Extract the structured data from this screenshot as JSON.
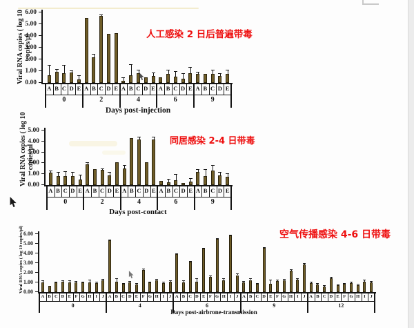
{
  "page": {
    "background": "#fdfdfd",
    "accent_red": "#ee0f0f",
    "bar_color": "#6f5d28",
    "axis_color": "#141414"
  },
  "annotations": [
    {
      "text": "人工感染 2 日后普遍带毒",
      "color": "#ee0f0f"
    },
    {
      "text": "同居感染 2-4 日带毒",
      "color": "#ee0f0f"
    },
    {
      "text": "空气传播感染 4-6 日带毒",
      "color": "#ee0f0f"
    }
  ],
  "icons": {
    "cursor_main": "mouse-pointer-cursor",
    "cursor_chart1": "small-pointer-cursor",
    "cursor_chart3": "small-pointer-cursor",
    "corner_fragment": "window-corner-fragment",
    "scrollbar": "right-scrollbar-strip"
  },
  "chart_data": [
    {
      "type": "bar",
      "title": "",
      "ylabel_line1": "Viral RNA copies ( log 10",
      "ylabel_line2": "copies/µl",
      "xlabel": "Days post-injection",
      "ylim": [
        0,
        6
      ],
      "yticks": [
        "0.00",
        "1.00",
        "2.00",
        "3.00",
        "4.00",
        "5.00",
        "6.00"
      ],
      "legend": null,
      "grid": false,
      "annotation": "人工感染 2 日后普遍带毒",
      "groups": [
        {
          "label": "0",
          "letters": [
            "A",
            "B",
            "C",
            "D",
            "E"
          ],
          "values": [
            0.65,
            0.95,
            0.8,
            0.9,
            0.3
          ],
          "errors": [
            1.55,
            1.2,
            1.55,
            1.05,
            0.65
          ]
        },
        {
          "label": "2",
          "letters": [
            "A",
            "B",
            "C",
            "D",
            "E"
          ],
          "values": [
            5.55,
            2.15,
            5.7,
            4.2,
            4.25
          ],
          "errors": [
            5.55,
            2.5,
            5.85,
            4.2,
            4.25
          ]
        },
        {
          "label": "4",
          "letters": [
            "A",
            "B",
            "C",
            "D",
            "E"
          ],
          "values": [
            0.2,
            0.65,
            0.8,
            0.45,
            0.6
          ],
          "errors": [
            0.5,
            1.6,
            1.1,
            0.45,
            0.9
          ]
        },
        {
          "label": "6",
          "letters": [
            "A",
            "B",
            "C",
            "D",
            "E"
          ],
          "values": [
            0.5,
            0.75,
            0.55,
            0.35,
            0.8
          ],
          "errors": [
            0.5,
            1.1,
            1.0,
            0.8,
            1.35
          ]
        },
        {
          "label": "9",
          "letters": [
            "A",
            "B",
            "C",
            "D",
            "E"
          ],
          "values": [
            0.75,
            0.75,
            0.75,
            0.6,
            0.75
          ],
          "errors": [
            0.95,
            0.75,
            1.1,
            0.85,
            1.1
          ]
        }
      ]
    },
    {
      "type": "bar",
      "title": "",
      "ylabel_line1": "Viral RNA copies ( log 10",
      "ylabel_line2": "copies/µl",
      "xlabel": "Days post-contact",
      "ylim": [
        0,
        5
      ],
      "yticks": [
        "0.00",
        "1.00",
        "2.00",
        "3.00",
        "4.00",
        "5.00"
      ],
      "legend": null,
      "grid": false,
      "annotation": "同居感染 2-4 日带毒",
      "groups": [
        {
          "label": "0",
          "letters": [
            "A",
            "B",
            "C",
            "D",
            "E"
          ],
          "values": [
            1.15,
            0.8,
            0.85,
            0.85,
            0.5
          ],
          "errors": [
            1.35,
            1.2,
            1.25,
            1.2,
            0.95
          ]
        },
        {
          "label": "2",
          "letters": [
            "A",
            "B",
            "C",
            "D",
            "E"
          ],
          "values": [
            1.9,
            1.45,
            1.4,
            0.9,
            2.1
          ],
          "errors": [
            2.1,
            1.45,
            1.55,
            1.2,
            2.1
          ]
        },
        {
          "label": "4",
          "letters": [
            "A",
            "B",
            "C",
            "D",
            "E"
          ],
          "values": [
            1.5,
            4.3,
            4.2,
            2.1,
            4.2
          ],
          "errors": [
            1.85,
            4.3,
            4.4,
            2.1,
            4.4
          ]
        },
        {
          "label": "6",
          "letters": [
            "A",
            "B",
            "C",
            "D",
            "E"
          ],
          "values": [
            0.35,
            0.25,
            0.45,
            0.2,
            0.3
          ],
          "errors": [
            0.35,
            0.6,
            1.0,
            0.2,
            0.65
          ]
        },
        {
          "label": "9",
          "letters": [
            "A",
            "B",
            "C",
            "D",
            "E"
          ],
          "values": [
            1.2,
            0.8,
            1.35,
            0.9,
            0.75
          ],
          "errors": [
            1.45,
            1.45,
            1.85,
            1.2,
            1.05
          ]
        }
      ]
    },
    {
      "type": "bar",
      "title": "",
      "ylabel_line1": "Viral RNA copies ( log 10 copies/µl)",
      "ylabel_line2": "",
      "xlabel": "Days post-airbrone-transmission",
      "ylim": [
        0,
        6
      ],
      "yticks": [
        "0.00",
        "1.00",
        "2.00",
        "3.00",
        "4.00",
        "5.00",
        "6.00"
      ],
      "legend": null,
      "grid": false,
      "annotation": "空气传播感染 4-6 日带毒",
      "groups": [
        {
          "label": "0",
          "letters": [
            "A",
            "B",
            "C",
            "D",
            "E",
            "F",
            "G",
            "H",
            "I",
            "J"
          ],
          "values": [
            1.0,
            0.65,
            1.0,
            1.1,
            1.0,
            1.0,
            1.0,
            1.0,
            0.9,
            1.2
          ],
          "errors": [
            1.2,
            0.65,
            1.1,
            1.2,
            1.2,
            1.15,
            1.1,
            1.3,
            1.05,
            1.35
          ]
        },
        {
          "label": "4",
          "letters": [
            "A",
            "B",
            "C",
            "D",
            "E",
            "F",
            "G",
            "H",
            "I",
            "J"
          ],
          "values": [
            5.35,
            1.1,
            0.85,
            1.0,
            0.8,
            2.3,
            1.0,
            1.25,
            0.9,
            1.1
          ],
          "errors": [
            5.45,
            1.4,
            0.95,
            1.15,
            0.95,
            2.45,
            1.1,
            1.35,
            1.05,
            1.2
          ]
        },
        {
          "label": "6",
          "letters": [
            "A",
            "B",
            "C",
            "D",
            "E",
            "F",
            "G",
            "H",
            "I",
            "J"
          ],
          "values": [
            3.95,
            1.0,
            3.15,
            1.1,
            4.5,
            1.55,
            5.5,
            1.2,
            5.85,
            1.75
          ],
          "errors": [
            4.0,
            1.25,
            3.2,
            1.4,
            4.55,
            1.7,
            5.55,
            1.45,
            5.9,
            1.95
          ]
        },
        {
          "label": "9",
          "letters": [
            "A",
            "B",
            "C",
            "D",
            "E",
            "F",
            "G",
            "H",
            "I",
            "J"
          ],
          "values": [
            1.0,
            1.25,
            0.85,
            4.6,
            0.85,
            1.15,
            1.25,
            2.2,
            1.3,
            2.85
          ],
          "errors": [
            1.15,
            1.4,
            0.95,
            4.65,
            1.3,
            1.3,
            1.35,
            2.35,
            1.45,
            3.0
          ]
        },
        {
          "label": "12",
          "letters": [
            "A",
            "B",
            "C",
            "D",
            "E",
            "F",
            "G",
            "H",
            "I",
            "J"
          ],
          "values": [
            0.95,
            0.8,
            0.6,
            1.45,
            0.7,
            0.85,
            0.95,
            0.75,
            1.1,
            1.0
          ],
          "errors": [
            1.05,
            0.9,
            0.7,
            1.6,
            0.8,
            0.95,
            1.05,
            0.85,
            1.3,
            1.15
          ]
        }
      ]
    }
  ]
}
